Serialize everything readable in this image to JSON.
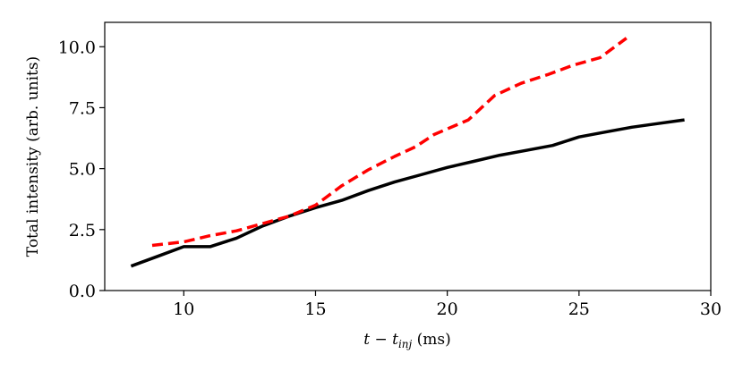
{
  "chart_data": {
    "type": "line",
    "xlabel": "t − t_inj (ms)",
    "xlabel_parts": {
      "main": "t − t",
      "sub": "inj",
      "tail": " (ms)"
    },
    "ylabel": "Total intensity (arb. units)",
    "xlim": [
      7,
      30
    ],
    "ylim": [
      0,
      11
    ],
    "xticks": [
      10,
      15,
      20,
      25,
      30
    ],
    "xtick_labels": [
      "10",
      "15",
      "20",
      "25",
      "30"
    ],
    "yticks": [
      0,
      2.5,
      5,
      7.5,
      10
    ],
    "ytick_labels": [
      "0.0",
      "2.5",
      "5.0",
      "7.5",
      "10.0"
    ],
    "grid": false,
    "series": [
      {
        "style": "solid",
        "color": "#000000",
        "x": [
          8,
          9,
          10,
          11,
          12,
          13,
          14,
          15,
          16,
          17,
          18,
          19,
          20,
          21,
          22,
          23,
          24,
          25,
          26,
          27,
          28,
          29
        ],
        "y": [
          1.0,
          1.4,
          1.8,
          1.8,
          2.15,
          2.65,
          3.05,
          3.4,
          3.7,
          4.1,
          4.45,
          4.75,
          5.05,
          5.3,
          5.55,
          5.75,
          5.95,
          6.3,
          6.5,
          6.7,
          6.85,
          7.0
        ]
      },
      {
        "style": "dashed",
        "color": "#ff0000",
        "x": [
          8.8,
          10,
          11,
          12,
          13,
          14,
          15,
          16,
          17,
          18,
          18.8,
          19.5,
          20.8,
          21.8,
          22.8,
          23.8,
          24.8,
          25.8,
          26.8
        ],
        "y": [
          1.85,
          2.0,
          2.25,
          2.45,
          2.75,
          3.05,
          3.5,
          4.3,
          4.95,
          5.5,
          5.9,
          6.4,
          7.0,
          8.0,
          8.5,
          8.85,
          9.25,
          9.55,
          10.35
        ]
      }
    ]
  }
}
